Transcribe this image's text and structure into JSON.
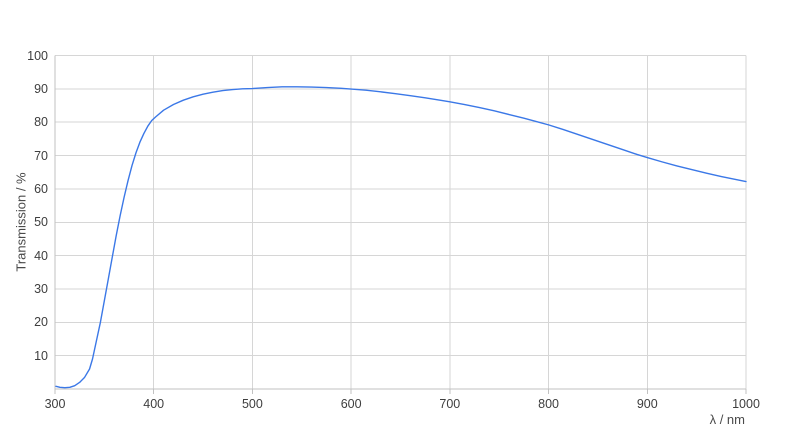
{
  "chart_data": {
    "type": "line",
    "title": "",
    "xlabel": "λ / nm",
    "ylabel": "Transmission / %",
    "xlim": [
      300,
      1000
    ],
    "ylim": [
      0,
      100
    ],
    "x_ticks": [
      300,
      400,
      500,
      600,
      700,
      800,
      900,
      1000
    ],
    "y_ticks": [
      10,
      20,
      30,
      40,
      50,
      60,
      70,
      80,
      90,
      100
    ],
    "grid": true,
    "legend": "none",
    "series": [
      {
        "name": "Transmission",
        "color": "#3b78e7",
        "points": [
          [
            301,
            0.8
          ],
          [
            305,
            0.5
          ],
          [
            310,
            0.4
          ],
          [
            315,
            0.5
          ],
          [
            320,
            1.0
          ],
          [
            325,
            2.0
          ],
          [
            330,
            3.5
          ],
          [
            335,
            6.0
          ],
          [
            338,
            9.0
          ],
          [
            342,
            14.5
          ],
          [
            346,
            20.0
          ],
          [
            350,
            26.5
          ],
          [
            354,
            33.0
          ],
          [
            358,
            39.5
          ],
          [
            362,
            46.0
          ],
          [
            366,
            52.0
          ],
          [
            370,
            57.5
          ],
          [
            374,
            62.5
          ],
          [
            378,
            67.0
          ],
          [
            382,
            70.8
          ],
          [
            386,
            74.0
          ],
          [
            390,
            76.6
          ],
          [
            394,
            78.8
          ],
          [
            398,
            80.5
          ],
          [
            402,
            81.6
          ],
          [
            410,
            83.6
          ],
          [
            420,
            85.3
          ],
          [
            430,
            86.6
          ],
          [
            440,
            87.6
          ],
          [
            450,
            88.4
          ],
          [
            460,
            89.0
          ],
          [
            470,
            89.5
          ],
          [
            480,
            89.8
          ],
          [
            490,
            90.0
          ],
          [
            500,
            90.1
          ],
          [
            515,
            90.4
          ],
          [
            530,
            90.6
          ],
          [
            545,
            90.6
          ],
          [
            560,
            90.55
          ],
          [
            575,
            90.4
          ],
          [
            590,
            90.15
          ],
          [
            600,
            89.95
          ],
          [
            615,
            89.6
          ],
          [
            630,
            89.1
          ],
          [
            645,
            88.55
          ],
          [
            660,
            87.95
          ],
          [
            675,
            87.3
          ],
          [
            690,
            86.6
          ],
          [
            700,
            86.1
          ],
          [
            715,
            85.3
          ],
          [
            730,
            84.4
          ],
          [
            745,
            83.4
          ],
          [
            760,
            82.3
          ],
          [
            775,
            81.2
          ],
          [
            790,
            80.0
          ],
          [
            800,
            79.2
          ],
          [
            815,
            77.8
          ],
          [
            830,
            76.3
          ],
          [
            845,
            74.8
          ],
          [
            860,
            73.3
          ],
          [
            875,
            71.8
          ],
          [
            890,
            70.3
          ],
          [
            900,
            69.4
          ],
          [
            915,
            68.1
          ],
          [
            930,
            66.9
          ],
          [
            945,
            65.8
          ],
          [
            960,
            64.7
          ],
          [
            975,
            63.7
          ],
          [
            990,
            62.8
          ],
          [
            1000,
            62.2
          ]
        ]
      }
    ]
  },
  "colors": {
    "background": "#ffffff",
    "line": "#3b78e7",
    "gridline": "#d6d6d6",
    "axis_line": "#c2c2c2",
    "tick_text": "#3e3e3e",
    "axis_title_text": "#4a4a4a"
  }
}
